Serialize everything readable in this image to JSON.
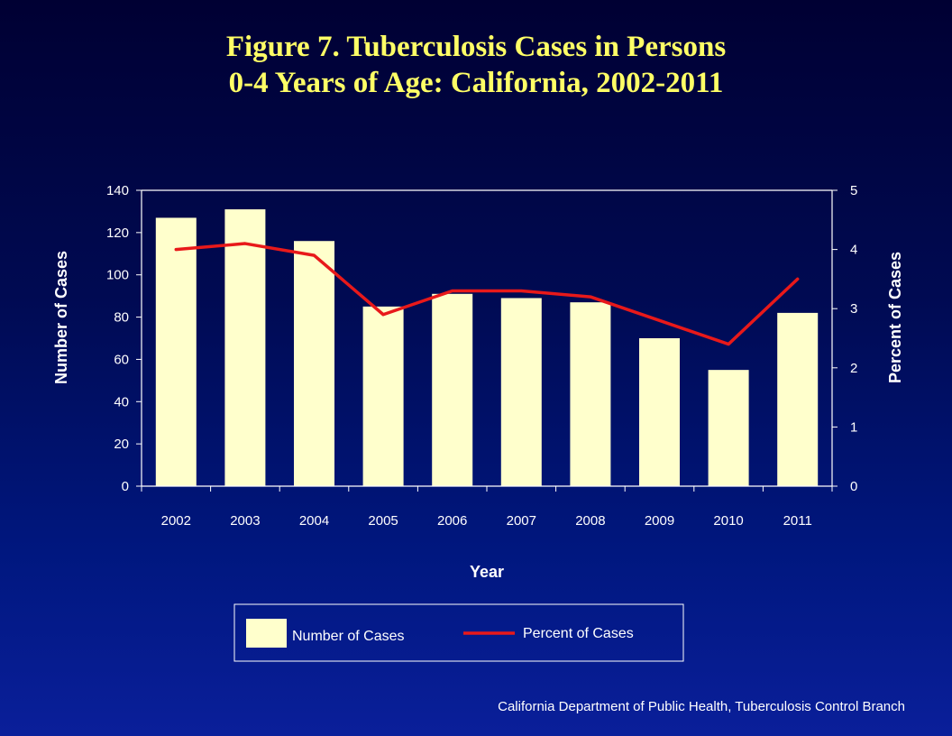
{
  "title_line1": "Figure 7. Tuberculosis Cases in Persons",
  "title_line2": "0-4 Years of Age: California, 2002-2011",
  "footer": "California Department  of Public Health, Tuberculosis Control Branch",
  "colors": {
    "bar": "#ffffcc",
    "line": "#e8191a",
    "text": "#ffffff",
    "title": "#ffff66"
  },
  "chart_data": {
    "type": "bar",
    "categories": [
      "2002",
      "2003",
      "2004",
      "2005",
      "2006",
      "2007",
      "2008",
      "2009",
      "2010",
      "2011"
    ],
    "series": [
      {
        "name": "Number of Cases",
        "type": "bar",
        "axis": "left",
        "values": [
          127,
          131,
          116,
          85,
          91,
          89,
          87,
          70,
          55,
          82
        ]
      },
      {
        "name": "Percent of Cases",
        "type": "line",
        "axis": "right",
        "values": [
          4.0,
          4.1,
          3.9,
          2.9,
          3.3,
          3.3,
          3.2,
          2.8,
          2.4,
          3.5
        ]
      }
    ],
    "xlabel": "Year",
    "ylabel": "Number of Cases",
    "y2label": "Percent of Cases",
    "ylim": [
      0,
      140
    ],
    "y2lim": [
      0,
      5
    ],
    "yticks": [
      0,
      20,
      40,
      60,
      80,
      100,
      120,
      140
    ],
    "y2ticks": [
      0,
      1,
      2,
      3,
      4,
      5
    ],
    "grid": false,
    "legend_position": "bottom"
  }
}
